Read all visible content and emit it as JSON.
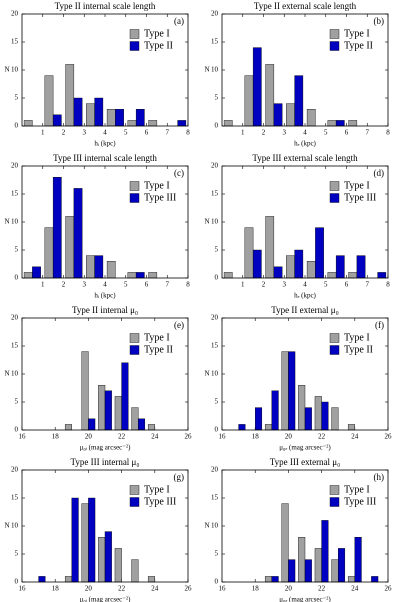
{
  "chart_data": [
    {
      "type": "bar",
      "title": "Type II internal scale length",
      "panel_label": "(a)",
      "xlabel": "hᵢ (kpc)",
      "ylabel": "N",
      "x": [
        0.5,
        1.5,
        2.5,
        3.5,
        4.5,
        5.5,
        6.5,
        7.5
      ],
      "xlim": [
        0,
        8
      ],
      "xticks": [
        1,
        2,
        3,
        4,
        5,
        6,
        7,
        8
      ],
      "ylim": [
        0,
        20
      ],
      "yticks": [
        0,
        5,
        10,
        15,
        20
      ],
      "legend": "upper right",
      "series": [
        {
          "name": "Type I",
          "color": "#a0a0a0",
          "values": [
            1,
            9,
            11,
            4,
            3,
            1,
            1,
            0
          ]
        },
        {
          "name": "Type II",
          "color": "#0000c0",
          "values": [
            0,
            2,
            5,
            5,
            3,
            3,
            0,
            1
          ]
        }
      ]
    },
    {
      "type": "bar",
      "title": "Type II external scale length",
      "panel_label": "(b)",
      "xlabel": "hₑ (kpc)",
      "ylabel": "N",
      "x": [
        0.5,
        1.5,
        2.5,
        3.5,
        4.5,
        5.5,
        6.5,
        7.5
      ],
      "xlim": [
        0,
        8
      ],
      "xticks": [
        1,
        2,
        3,
        4,
        5,
        6,
        7,
        8
      ],
      "ylim": [
        0,
        20
      ],
      "yticks": [
        0,
        5,
        10,
        15,
        20
      ],
      "legend": "upper right",
      "series": [
        {
          "name": "Type I",
          "color": "#a0a0a0",
          "values": [
            1,
            9,
            11,
            4,
            3,
            1,
            1,
            0
          ]
        },
        {
          "name": "Type II",
          "color": "#0000c0",
          "values": [
            0,
            14,
            4,
            9,
            0,
            1,
            0,
            0
          ]
        }
      ]
    },
    {
      "type": "bar",
      "title": "Type III internal scale length",
      "panel_label": "(c)",
      "xlabel": "hᵢ (kpc)",
      "ylabel": "N",
      "x": [
        0.5,
        1.5,
        2.5,
        3.5,
        4.5,
        5.5,
        6.5,
        7.5
      ],
      "xlim": [
        0,
        8
      ],
      "xticks": [
        1,
        2,
        3,
        4,
        5,
        6,
        7,
        8
      ],
      "ylim": [
        0,
        20
      ],
      "yticks": [
        0,
        5,
        10,
        15,
        20
      ],
      "legend": "upper right",
      "series": [
        {
          "name": "Type I",
          "color": "#a0a0a0",
          "values": [
            1,
            9,
            11,
            4,
            3,
            1,
            1,
            0
          ]
        },
        {
          "name": "Type III",
          "color": "#0000c0",
          "values": [
            2,
            18,
            16,
            4,
            0,
            1,
            0,
            0
          ]
        }
      ]
    },
    {
      "type": "bar",
      "title": "Type III external scale length",
      "panel_label": "(d)",
      "xlabel": "hₑ (kpc)",
      "ylabel": "N",
      "x": [
        0.5,
        1.5,
        2.5,
        3.5,
        4.5,
        5.5,
        6.5,
        7.5
      ],
      "xlim": [
        0,
        8
      ],
      "xticks": [
        1,
        2,
        3,
        4,
        5,
        6,
        7,
        8
      ],
      "ylim": [
        0,
        20
      ],
      "yticks": [
        0,
        5,
        10,
        15,
        20
      ],
      "legend": "upper right",
      "series": [
        {
          "name": "Type I",
          "color": "#a0a0a0",
          "values": [
            1,
            9,
            11,
            4,
            3,
            1,
            1,
            0
          ]
        },
        {
          "name": "Type III",
          "color": "#0000c0",
          "values": [
            0,
            5,
            2,
            5,
            9,
            4,
            4,
            1
          ]
        }
      ]
    },
    {
      "type": "bar",
      "title": "Type II internal μ₀",
      "panel_label": "(e)",
      "xlabel": "μ₀ᵢ (mag arcsec⁻²)",
      "ylabel": "N",
      "x": [
        17,
        18,
        19,
        20,
        21,
        22,
        23,
        24,
        25
      ],
      "xlim": [
        16,
        26
      ],
      "xticks": [
        16,
        18,
        20,
        22,
        24,
        26
      ],
      "ylim": [
        0,
        20
      ],
      "yticks": [
        0,
        5,
        10,
        15,
        20
      ],
      "legend": "upper right",
      "series": [
        {
          "name": "Type I",
          "color": "#a0a0a0",
          "values": [
            0,
            0,
            1,
            14,
            8,
            6,
            4,
            1,
            0
          ]
        },
        {
          "name": "Type II",
          "color": "#0000c0",
          "values": [
            0,
            0,
            0,
            2,
            7,
            12,
            2,
            0,
            0
          ]
        }
      ]
    },
    {
      "type": "bar",
      "title": "Type II external μ₀",
      "panel_label": "(f)",
      "xlabel": "μ₀ₑ (mag arcsec⁻²)",
      "ylabel": "N",
      "x": [
        17,
        18,
        19,
        20,
        21,
        22,
        23,
        24,
        25
      ],
      "xlim": [
        16,
        26
      ],
      "xticks": [
        16,
        18,
        20,
        22,
        24,
        26
      ],
      "ylim": [
        0,
        20
      ],
      "yticks": [
        0,
        5,
        10,
        15,
        20
      ],
      "legend": "upper right",
      "series": [
        {
          "name": "Type I",
          "color": "#a0a0a0",
          "values": [
            0,
            0,
            1,
            14,
            8,
            6,
            4,
            1,
            0
          ]
        },
        {
          "name": "Type II",
          "color": "#0000c0",
          "values": [
            1,
            4,
            7,
            14,
            4,
            5,
            0,
            0,
            0
          ]
        }
      ]
    },
    {
      "type": "bar",
      "title": "Type III internal μ₀",
      "panel_label": "(g)",
      "xlabel": "μ₀ᵢ (mag arcsec⁻²)",
      "ylabel": "N",
      "x": [
        17,
        18,
        19,
        20,
        21,
        22,
        23,
        24,
        25
      ],
      "xlim": [
        16,
        26
      ],
      "xticks": [
        16,
        18,
        20,
        22,
        24,
        26
      ],
      "ylim": [
        0,
        20
      ],
      "yticks": [
        0,
        5,
        10,
        15,
        20
      ],
      "legend": "upper right",
      "series": [
        {
          "name": "Type I",
          "color": "#a0a0a0",
          "values": [
            0,
            0,
            1,
            14,
            8,
            6,
            4,
            1,
            0
          ]
        },
        {
          "name": "Type III",
          "color": "#0000c0",
          "values": [
            1,
            0,
            15,
            15,
            9,
            0,
            0,
            0,
            0
          ]
        }
      ]
    },
    {
      "type": "bar",
      "title": "Type III external μ₀",
      "panel_label": "(h)",
      "xlabel": "μ₀ₑ (mag arcsec⁻²)",
      "ylabel": "N",
      "x": [
        17,
        18,
        19,
        20,
        21,
        22,
        23,
        24,
        25
      ],
      "xlim": [
        16,
        26
      ],
      "xticks": [
        16,
        18,
        20,
        22,
        24,
        26
      ],
      "ylim": [
        0,
        20
      ],
      "yticks": [
        0,
        5,
        10,
        15,
        20
      ],
      "legend": "upper right",
      "series": [
        {
          "name": "Type I",
          "color": "#a0a0a0",
          "values": [
            0,
            0,
            1,
            14,
            8,
            6,
            4,
            1,
            0
          ]
        },
        {
          "name": "Type III",
          "color": "#0000c0",
          "values": [
            0,
            0,
            1,
            4,
            4,
            11,
            6,
            8,
            1
          ]
        }
      ]
    }
  ]
}
